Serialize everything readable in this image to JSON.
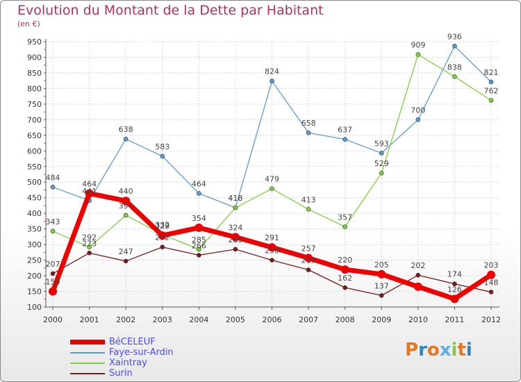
{
  "chart_data": {
    "type": "line",
    "title": "Evolution du Montant de la Dette par Habitant",
    "subtitle": "(en €)",
    "x": [
      "2000",
      "2001",
      "2002",
      "2003",
      "2004",
      "2005",
      "2006",
      "2007",
      "2008",
      "2009",
      "2010",
      "2011",
      "2012"
    ],
    "ylim": [
      100,
      950
    ],
    "yticks": [
      100,
      150,
      200,
      250,
      300,
      350,
      400,
      450,
      500,
      550,
      600,
      650,
      700,
      750,
      800,
      850,
      900,
      950
    ],
    "grid": true,
    "legend_position": "bottom-left",
    "series": [
      {
        "name": "BéCELEUF",
        "color": "#ee0000",
        "width": 7,
        "marker": 6,
        "values": [
          150,
          464,
          440,
          329,
          354,
          324,
          291,
          257,
          220,
          205,
          165,
          126,
          203
        ],
        "labels": [
          "150",
          "464",
          "440",
          "329",
          "354",
          "324",
          "291",
          "257",
          "220",
          "205",
          "",
          "126",
          "203"
        ]
      },
      {
        "name": "Faye-sur-Ardin",
        "color": "#5b9bd5",
        "width": 1.3,
        "marker": 3,
        "values": [
          484,
          441,
          638,
          583,
          464,
          418,
          824,
          658,
          637,
          593,
          700,
          936,
          821
        ],
        "labels": [
          "484",
          "441",
          "638",
          "583",
          "464",
          "418",
          "824",
          "658",
          "637",
          "593",
          "700",
          "936",
          "821"
        ]
      },
      {
        "name": "Xaintray",
        "color": "#80d040",
        "width": 1.3,
        "marker": 3,
        "values": [
          343,
          292,
          394,
          332,
          285,
          418,
          479,
          413,
          357,
          529,
          909,
          838,
          762
        ],
        "labels": [
          "343",
          "292",
          "394",
          "332",
          "285",
          "418",
          "479",
          "413",
          "357",
          "529",
          "909",
          "838",
          "762"
        ]
      },
      {
        "name": "Surin",
        "color": "#7a1a1a",
        "width": 1.3,
        "marker": 3,
        "values": [
          207,
          273,
          247,
          292,
          266,
          285,
          250,
          219,
          162,
          137,
          202,
          174,
          148
        ],
        "labels": [
          "207",
          "273",
          "247",
          "292",
          "266",
          "285",
          "250",
          "219",
          "162",
          "137",
          "202",
          "174",
          "148"
        ]
      }
    ]
  },
  "logo": {
    "text": "Proxiti"
  }
}
